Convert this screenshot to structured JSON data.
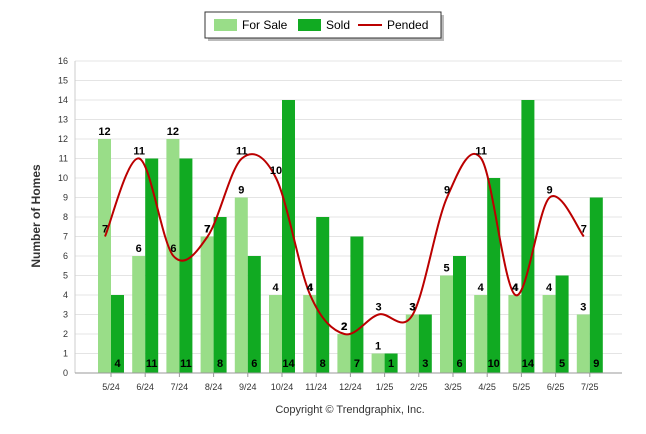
{
  "chart_data": {
    "type": "bar",
    "title": "",
    "xlabel": "",
    "ylabel": "Number of Homes",
    "ylim": [
      0,
      16
    ],
    "yticks": [
      0,
      1,
      2,
      3,
      4,
      5,
      6,
      7,
      8,
      9,
      10,
      11,
      12,
      13,
      14,
      15,
      16
    ],
    "grid": true,
    "legend_position": "top-center",
    "categories": [
      "5/24",
      "6/24",
      "7/24",
      "8/24",
      "9/24",
      "10/24",
      "11/24",
      "12/24",
      "1/25",
      "2/25",
      "3/25",
      "4/25",
      "5/25",
      "6/25",
      "7/25"
    ],
    "series": [
      {
        "name": "For Sale",
        "type": "bar",
        "color": "#99dd88",
        "values": [
          12,
          6,
          12,
          7,
          9,
          4,
          4,
          2,
          1,
          3,
          5,
          4,
          4,
          4,
          3
        ]
      },
      {
        "name": "Sold",
        "type": "bar",
        "color": "#11aa22",
        "values": [
          4,
          11,
          11,
          8,
          6,
          14,
          8,
          7,
          1,
          3,
          6,
          10,
          14,
          5,
          9
        ]
      },
      {
        "name": "Pended",
        "type": "line",
        "color": "#bb0000",
        "values": [
          7,
          11,
          6,
          7,
          11,
          10,
          4,
          2,
          3,
          3,
          9,
          11,
          4,
          9,
          7
        ]
      }
    ],
    "credit": "Copyright © Trendgraphix, Inc."
  }
}
